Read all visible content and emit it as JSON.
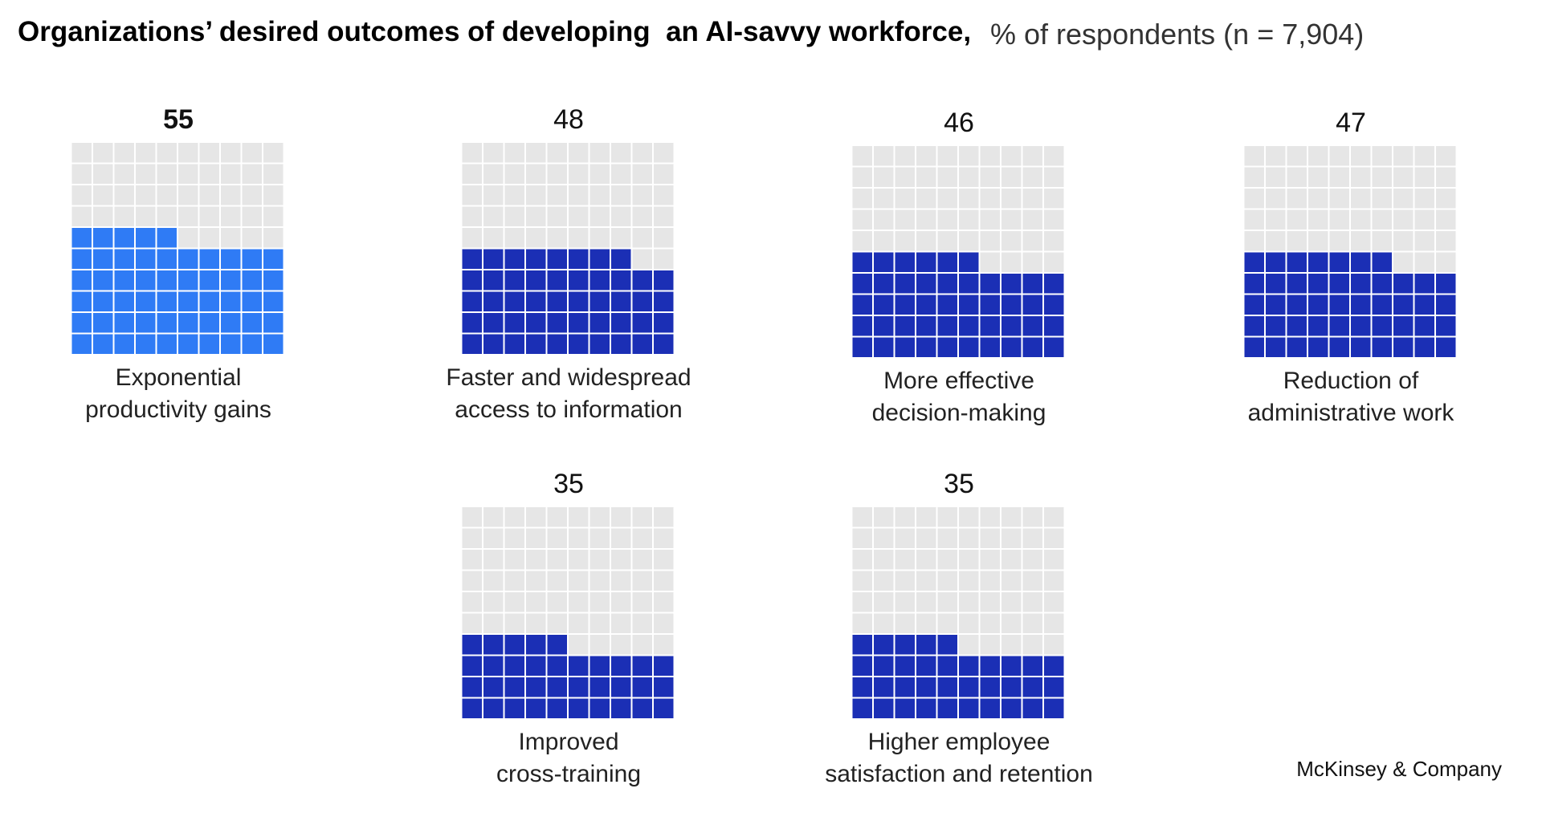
{
  "chart_data": {
    "type": "waffle",
    "title": "Organizations’ desired outcomes of developing  an AI-savvy workforce,",
    "subtitle": "% of respondents (n = 7,904)",
    "categories": [
      "Exponential\nproductivity gains",
      "Faster and widespread\naccess to information",
      "More effective\ndecision-making",
      "Reduction of\nadministrative work",
      "Improved\ncross-training",
      "Higher employee\nsatisfaction and retention"
    ],
    "values": [
      55,
      48,
      46,
      47,
      35,
      35
    ],
    "colors": [
      "#2f7bf5",
      "#1b2fb5",
      "#1b2fb5",
      "#1b2fb5",
      "#1b2fb5",
      "#1b2fb5"
    ],
    "highlight_color": "#2f7bf5",
    "empty_color": "#e6e6e6",
    "source": "McKinsey & Company"
  }
}
